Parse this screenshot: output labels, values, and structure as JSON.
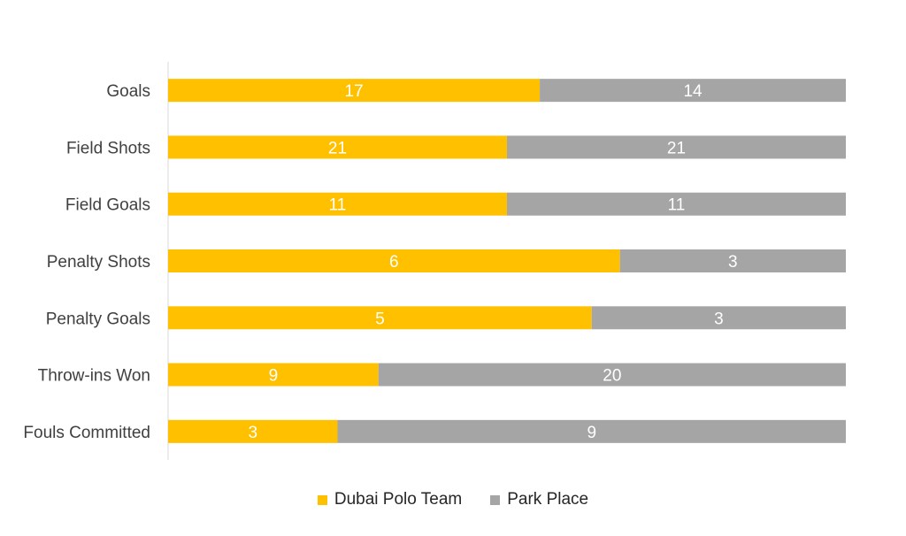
{
  "chart_data": {
    "type": "bar",
    "orientation": "horizontal",
    "stacking": "percent",
    "categories": [
      "Goals",
      "Field Shots",
      "Field Goals",
      "Penalty Shots",
      "Penalty Goals",
      "Throw-ins Won",
      "Fouls Committed"
    ],
    "series": [
      {
        "name": "Dubai Polo Team",
        "color": "#FFC000",
        "values": [
          17,
          21,
          11,
          6,
          5,
          9,
          3
        ]
      },
      {
        "name": "Park Place",
        "color": "#A5A5A5",
        "values": [
          14,
          21,
          11,
          3,
          3,
          20,
          9
        ]
      }
    ],
    "legend_position": "bottom",
    "grid": false
  }
}
